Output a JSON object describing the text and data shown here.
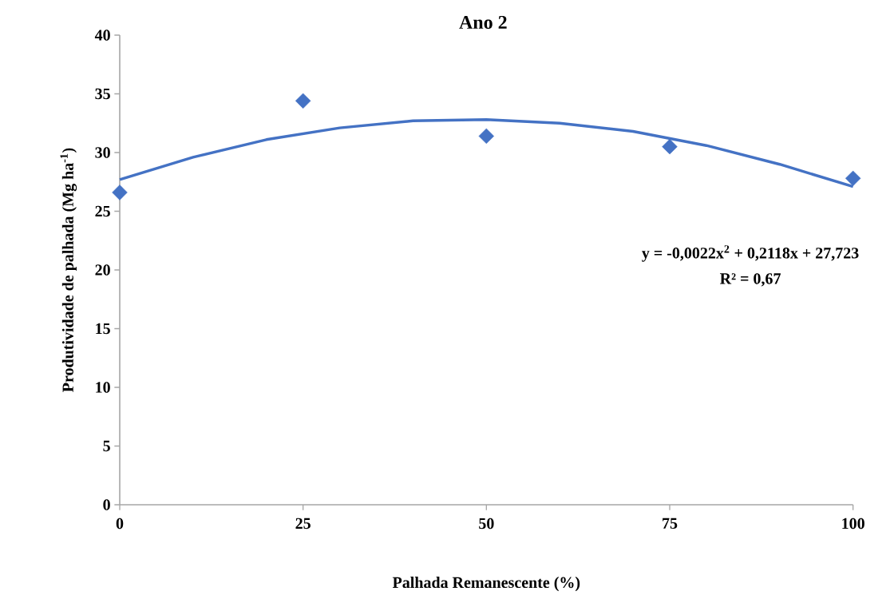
{
  "chart_data": {
    "type": "scatter",
    "title": "Ano 2",
    "xlabel": "Palhada Remanescente (%)",
    "ylabel": "Produtividade de palhada (Mg ha$^{-1}$)",
    "xlim": [
      0,
      100
    ],
    "xticks": [
      0,
      25,
      50,
      75,
      100
    ],
    "ylim": [
      0,
      40
    ],
    "yticks": [
      0,
      5,
      10,
      15,
      20,
      25,
      30,
      35,
      40
    ],
    "line_style": "solid",
    "series": [
      {
        "marker": "diamond",
        "color": "#4472c4",
        "x": [
          0,
          25,
          50,
          75,
          100
        ],
        "values": [
          26.6,
          34.4,
          31.4,
          30.5,
          27.8
        ]
      },
      {
        "type": "line",
        "color": "#4472c4",
        "x": [
          0,
          10,
          20,
          30,
          40,
          50,
          60,
          70,
          80,
          90,
          100
        ],
        "values": [
          27.7,
          29.6,
          31.1,
          32.1,
          32.7,
          32.8,
          32.5,
          31.8,
          30.6,
          29.0,
          27.1
        ]
      }
    ],
    "annotations": [
      "y = -0,0022x$^{2}$ + 0,2118x + 27,723",
      "R² = 0,67"
    ]
  }
}
